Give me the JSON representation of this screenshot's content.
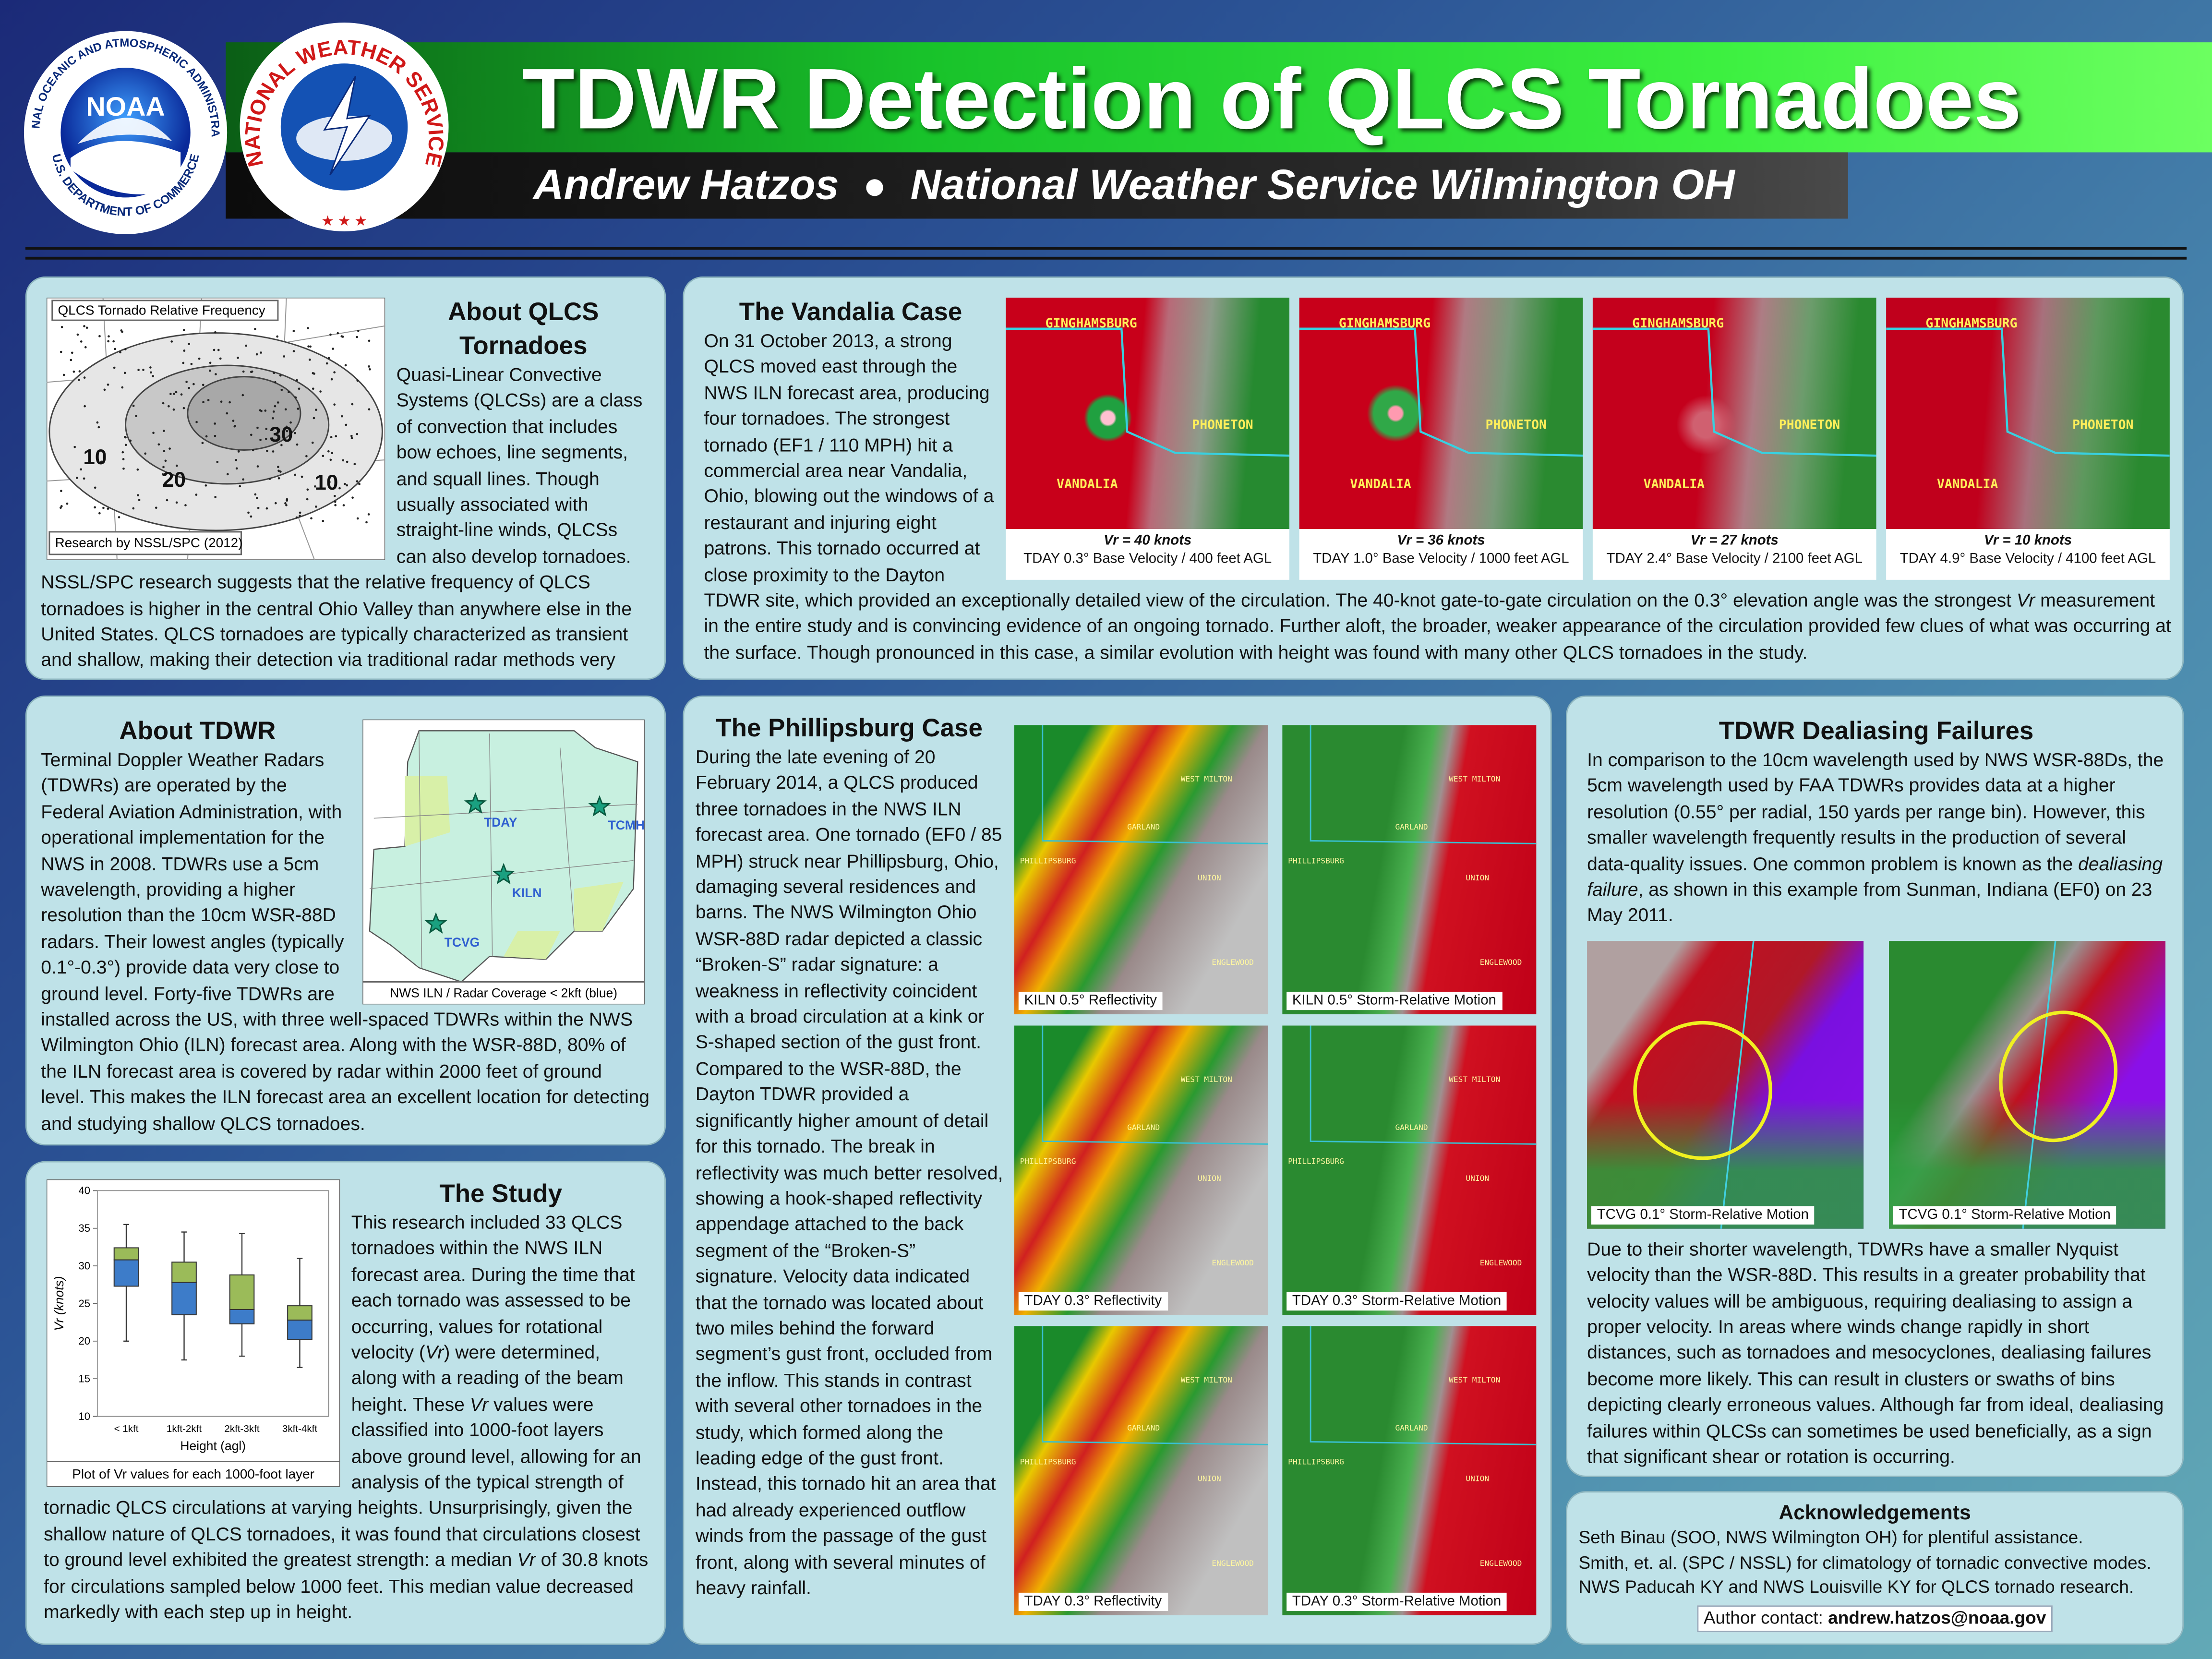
{
  "header": {
    "title": "TDWR Detection of QLCS Tornadoes",
    "author": "Andrew Hatzos",
    "affiliation": "National Weather Service Wilmington OH",
    "noaa": {
      "name": "NOAA",
      "ring_top": "NATIONAL OCEANIC AND ATMOSPHERIC ADMINISTRATION",
      "ring_bottom": "U.S. DEPARTMENT OF COMMERCE"
    },
    "nws_ring": "NATIONAL WEATHER SERVICE"
  },
  "about_qlcs": {
    "heading": "About QLCS Tornadoes",
    "map": {
      "title": "QLCS Tornado Relative Frequency",
      "caption": "Research by NSSL/SPC (2012)",
      "contour_labels": [
        10,
        20,
        30,
        10
      ]
    },
    "body": [
      "Quasi-Linear Convective Systems (QLCSs) are a class of convection that includes bow echoes, line segments, and squall lines. Though usually associated with straight-line winds, QLCSs can also develop tornadoes. NSSL/SPC research suggests that the relative frequency of QLCS tornadoes is higher in the central Ohio Valley than anywhere else in the United States. QLCS tornadoes are typically characterized as transient and shallow, making their detection via traditional radar methods very difficult."
    ]
  },
  "vandalia": {
    "heading": "The Vandalia Case",
    "body": [
      "On 31 October 2013, a strong QLCS moved east through the NWS ILN forecast area, producing four tornadoes. The strongest tornado (EF1 / 110 MPH) hit a commercial area near Vandalia, Ohio, blowing out the windows of a restaurant and injuring eight patrons. This tornado occurred at close proximity to the Dayton TDWR site, which provided an exceptionally detailed view of the circulation. The 40-knot gate-to-gate circulation on the 0.3° elevation angle was the strongest ",
      "Vr",
      " measurement in the entire study and is convincing evidence of an ongoing tornado. Further aloft, the broader, weaker appearance of the circulation provided few clues of what was occurring at the surface. Though pronounced in this case, a similar evolution with height was found with many other QLCS tornadoes in the study."
    ],
    "towns": [
      "GINGHAMSBURG",
      "PHONETON",
      "VANDALIA"
    ],
    "panels": [
      {
        "vr": "Vr = 40 knots",
        "caption": "TDAY 0.3° Base Velocity / 400 feet AGL"
      },
      {
        "vr": "Vr = 36 knots",
        "caption": "TDAY 1.0° Base Velocity / 1000 feet AGL"
      },
      {
        "vr": "Vr = 27 knots",
        "caption": "TDAY 2.4° Base Velocity / 2100 feet AGL"
      },
      {
        "vr": "Vr = 10 knots",
        "caption": "TDAY 4.9° Base Velocity / 4100 feet AGL"
      }
    ]
  },
  "about_tdwr": {
    "heading": "About TDWR",
    "body": [
      "Terminal Doppler Weather Radars (TDWRs) are operated by the Federal Aviation Administration, with operational implementation for the NWS in 2008. TDWRs use a 5cm wavelength, providing a higher resolution than the 10cm WSR-88D radars. Their lowest angles (typically 0.1°-0.3°) provide data very close to ground level. Forty-five TDWRs are installed across the US, with three well-spaced TDWRs within the NWS Wilmington Ohio (ILN) forecast area. Along with the WSR-88D, 80% of the ILN forecast area is covered by radar within 2000 feet of ground level. This makes the ILN forecast area an excellent location for detecting and studying shallow QLCS tornadoes."
    ],
    "map": {
      "caption": "NWS ILN / Radar Coverage < 2kft (blue)",
      "sites": [
        "TDAY",
        "TCMH",
        "KILN",
        "TCVG"
      ]
    }
  },
  "study": {
    "heading": "The Study",
    "body": [
      "This research included 33 QLCS tornadoes within the NWS ILN forecast area. During the time that each tornado was assessed to be occurring, values for rotational velocity (",
      "Vr",
      ") were determined, along with a reading of the beam height. These ",
      "Vr",
      " values were classified into 1000-foot layers above ground level, allowing for an analysis of the typical strength of tornadic QLCS circulations at varying heights. Unsurprisingly, given the shallow nature of QLCS tornadoes, it was found that circulations closest to ground level exhibited the greatest strength: a median ",
      "Vr",
      " of 30.8 knots for circulations sampled below 1000 feet. This median value decreased markedly with each step up in height."
    ],
    "chart": {
      "type": "box",
      "y_label": "Vr (knots)",
      "x_label": "Height (agl)",
      "caption": "Plot of Vr values for each 1000-foot layer",
      "categories": [
        "< 1kft",
        "1kft-2kft",
        "2kft-3kft",
        "3kft-4kft"
      ],
      "low": [
        20,
        17.5,
        18,
        16.5
      ],
      "q1": [
        27.3,
        23.5,
        22.3,
        20.2
      ],
      "median": [
        30.8,
        27.8,
        24.2,
        22.8
      ],
      "q3": [
        32.4,
        30.5,
        28.8,
        24.7
      ],
      "high": [
        35.5,
        34.5,
        34.3,
        31
      ],
      "lower_color": "#3d7cc9",
      "upper_color": "#9bbb59",
      "ylim": [
        10,
        40
      ],
      "yticks": [
        10,
        15,
        20,
        25,
        30,
        35,
        40
      ],
      "grid": false
    }
  },
  "phillipsburg": {
    "heading": "The Phillipsburg Case",
    "body": [
      "During the late evening of 20 February 2014, a QLCS produced three tornadoes in the NWS ILN forecast area. One tornado (EF0 / 85 MPH) struck near Phillipsburg, Ohio, damaging several residences and barns. The NWS Wilmington Ohio WSR-88D radar depicted a classic “Broken-S” radar signature: a weakness in reflectivity coincident with a broad circulation at a kink or S-shaped section of the gust front. Compared to the WSR-88D, the Dayton TDWR provided a significantly higher amount of detail for this tornado. The break in reflectivity was much better resolved, showing a hook-shaped reflectivity appendage attached to the back segment of the “Broken-S” signature. Velocity data indicated that the tornado was located about two miles behind the forward segment’s gust front, occluded from the inflow. This stands in contrast with several other tornadoes in the study, which formed along the leading edge of the gust front. Instead, this tornado hit an area that had already experienced outflow winds from the passage of the gust front, along with several minutes of heavy rainfall."
    ],
    "towns": [
      "WEST MILTON",
      "GARLAND",
      "PHILLIPSBURG",
      "UNION",
      "ENGLEWOOD"
    ],
    "panels": [
      "KILN 0.5° Reflectivity",
      "KILN 0.5° Storm-Relative Motion",
      "TDAY 0.3° Reflectivity",
      "TDAY 0.3° Storm-Relative Motion",
      "TDAY 0.3° Reflectivity",
      "TDAY 0.3° Storm-Relative Motion"
    ]
  },
  "dealiasing": {
    "heading": "TDWR Dealiasing Failures",
    "body1": [
      "In comparison to the 10cm wavelength used by NWS WSR-88Ds, the 5cm wavelength used by FAA TDWRs provides data at a higher resolution (0.55° per radial, 150 yards per range bin). However, this smaller wavelength frequently results in the production of several data-quality issues. One common problem is known as the ",
      "dealiasing failure",
      ", as shown in this example from Sunman, Indiana (EF0) on 23 May 2011."
    ],
    "body2": [
      "Due to their shorter wavelength, TDWRs have a smaller Nyquist velocity than the WSR-88D. This results in a greater probability that velocity values will be ambiguous, requiring dealiasing to assign a proper velocity. In areas where winds change rapidly in short distances, such as tornadoes and mesocyclones, dealiasing failures become more likely. This can result in clusters or swaths of bins depicting clearly erroneous values. Although far from ideal, dealiasing failures within QLCSs can sometimes be used beneficially, as a sign that significant shear or rotation is occurring."
    ],
    "panels": [
      "TCVG 0.1° Storm-Relative Motion",
      "TCVG 0.1° Storm-Relative Motion"
    ]
  },
  "acknowledgements": {
    "heading": "Acknowledgements",
    "lines": [
      "Seth Binau (SOO, NWS Wilmington OH) for plentiful assistance.",
      "Smith, et. al. (SPC / NSSL) for climatology of tornadic convective modes.",
      "NWS Paducah KY and NWS Louisville KY for QLCS tornado research."
    ],
    "contact_label": "Author contact:",
    "email": "andrew.hatzos@noaa.gov"
  }
}
